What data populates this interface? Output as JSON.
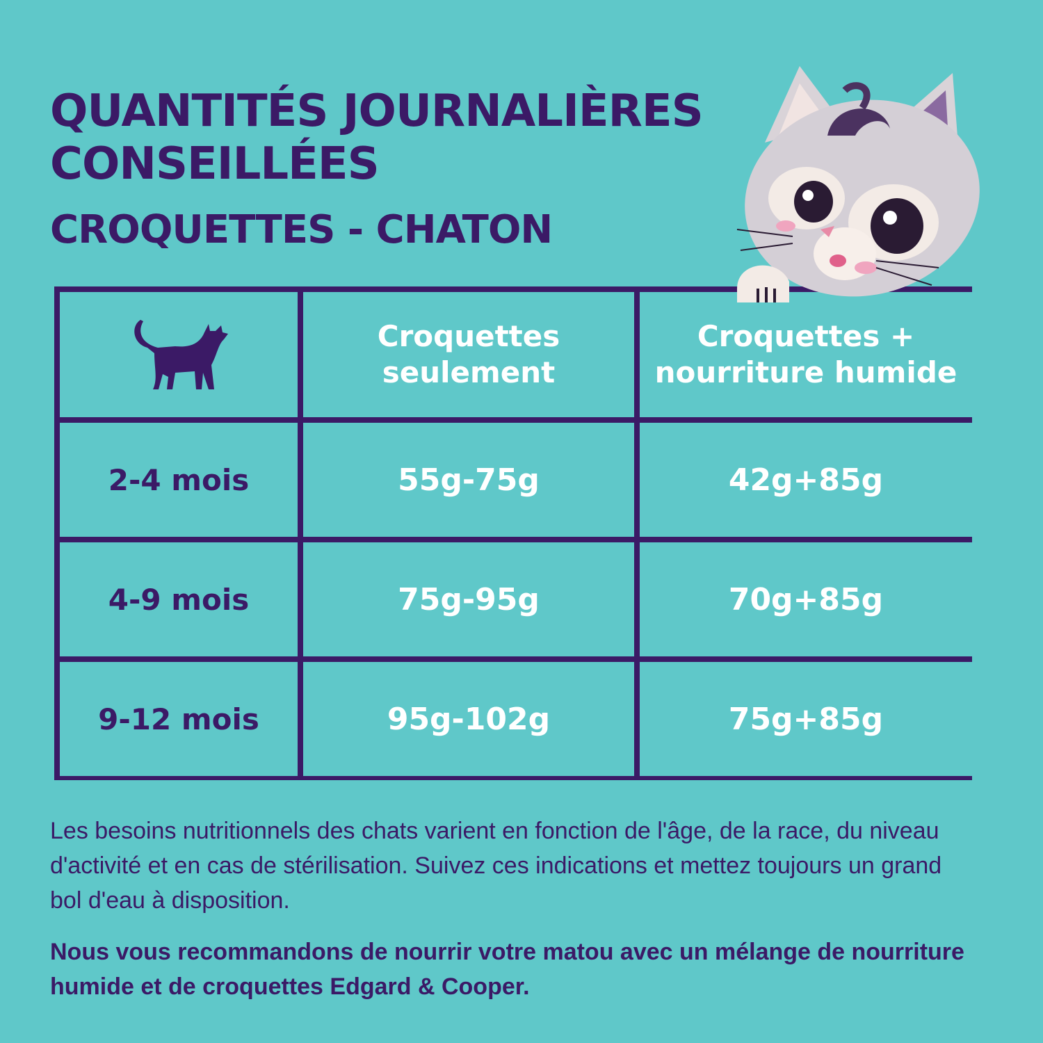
{
  "header": {
    "title": [
      "QUANTITÉS JOURNALIÈRES",
      "CONSEILLÉES"
    ],
    "subtitle": "CROQUETTES - CHATON"
  },
  "table": {
    "header": [
      null,
      [
        "Croquettes",
        "seulement"
      ],
      [
        "Croquettes +",
        "nourriture humide"
      ]
    ],
    "rows": [
      [
        "2-4 mois",
        "55g-75g",
        "42g+85g"
      ],
      [
        "4-9 mois",
        "75g-95g",
        "70g+85g"
      ],
      [
        "9-12 mois",
        "95g-102g",
        "75g+85g"
      ]
    ]
  },
  "notes": [
    "Les besoins nutritionnels des chats varient en fonction de l'âge, de la race, du niveau d'activité et en cas de stérilisation. Suivez ces indications et mettez toujours un grand bol d'eau à disposition.",
    "Nous vous recommandons de nourrir votre matou avec un mélange de nourriture humide et de croquettes Edgard & Cooper."
  ]
}
